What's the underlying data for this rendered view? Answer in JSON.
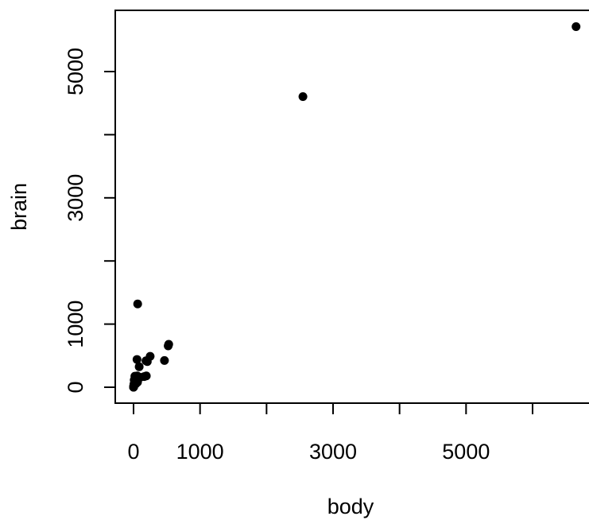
{
  "chart_data": {
    "type": "scatter",
    "title": "",
    "xlabel": "body",
    "ylabel": "brain",
    "xlim": [
      -200,
      6860
    ],
    "ylim": [
      -330,
      5850
    ],
    "x_ticks": [
      0,
      1000,
      2000,
      3000,
      4000,
      5000,
      6000
    ],
    "x_tick_labels": [
      "0",
      "1000",
      "",
      "3000",
      "",
      "5000",
      ""
    ],
    "y_ticks": [
      0,
      1000,
      2000,
      3000,
      4000,
      5000
    ],
    "y_tick_labels": [
      "0",
      "1000",
      "",
      "3000",
      "",
      "5000"
    ],
    "grid": false,
    "marker_color": "#000000",
    "points": [
      {
        "x": 0.02,
        "y": 0.4
      },
      {
        "x": 0.12,
        "y": 1.0
      },
      {
        "x": 0.28,
        "y": 1.9
      },
      {
        "x": 1.0,
        "y": 5.5
      },
      {
        "x": 2.0,
        "y": 12
      },
      {
        "x": 3.3,
        "y": 25
      },
      {
        "x": 6.0,
        "y": 50
      },
      {
        "x": 10,
        "y": 115
      },
      {
        "x": 20,
        "y": 175
      },
      {
        "x": 27,
        "y": 115
      },
      {
        "x": 35,
        "y": 56
      },
      {
        "x": 36,
        "y": 119
      },
      {
        "x": 52,
        "y": 440
      },
      {
        "x": 55,
        "y": 180
      },
      {
        "x": 60,
        "y": 81
      },
      {
        "x": 62,
        "y": 1320
      },
      {
        "x": 85,
        "y": 325
      },
      {
        "x": 100,
        "y": 157
      },
      {
        "x": 160,
        "y": 169
      },
      {
        "x": 187,
        "y": 419
      },
      {
        "x": 192,
        "y": 180
      },
      {
        "x": 207,
        "y": 406
      },
      {
        "x": 250,
        "y": 490
      },
      {
        "x": 465,
        "y": 423
      },
      {
        "x": 521,
        "y": 655
      },
      {
        "x": 529,
        "y": 680
      },
      {
        "x": 2547,
        "y": 4603
      },
      {
        "x": 6654,
        "y": 5712
      }
    ]
  }
}
